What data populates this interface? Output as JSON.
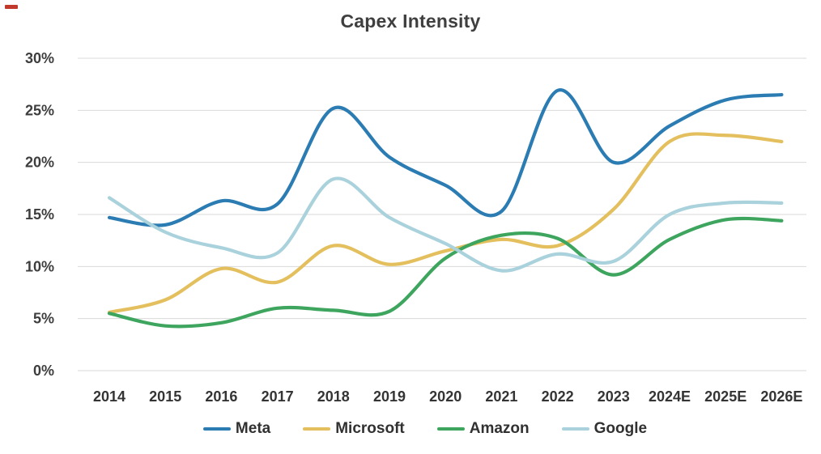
{
  "chart_data": {
    "type": "line",
    "title": "Capex Intensity",
    "categories": [
      "2014",
      "2015",
      "2016",
      "2017",
      "2018",
      "2019",
      "2020",
      "2021",
      "2022",
      "2023",
      "2024E",
      "2025E",
      "2026E"
    ],
    "y_ticks": [
      "30%",
      "25%",
      "20%",
      "15%",
      "10%",
      "5%",
      "0%"
    ],
    "y_tick_values": [
      30,
      25,
      20,
      15,
      10,
      5,
      0
    ],
    "ylim": [
      0,
      30
    ],
    "grid": true,
    "smooth_lines": true,
    "legend_position": "bottom",
    "series": [
      {
        "name": "Meta",
        "color": "#2b7cb3",
        "values": [
          14.7,
          14.0,
          16.3,
          16.0,
          25.2,
          20.5,
          17.8,
          15.3,
          26.9,
          20.0,
          23.5,
          26.0,
          26.5
        ]
      },
      {
        "name": "Microsoft",
        "color": "#e4bf5d",
        "values": [
          5.6,
          6.8,
          9.8,
          8.5,
          12.0,
          10.2,
          11.5,
          12.6,
          12.0,
          15.5,
          22.0,
          22.6,
          22.0
        ]
      },
      {
        "name": "Amazon",
        "color": "#3ea55e",
        "values": [
          5.5,
          4.3,
          4.6,
          6.0,
          5.8,
          5.7,
          10.8,
          13.0,
          12.7,
          9.2,
          12.6,
          14.5,
          14.4
        ]
      },
      {
        "name": "Google",
        "color": "#aad2dc",
        "values": [
          16.6,
          13.3,
          11.8,
          11.3,
          18.4,
          14.7,
          12.2,
          9.6,
          11.2,
          10.5,
          15.0,
          16.1,
          16.1
        ]
      }
    ],
    "text_color": "#3d3d3d",
    "gridline_color": "#d9d9d9"
  },
  "decorations": {
    "red_mark_color": "#c0392b"
  }
}
